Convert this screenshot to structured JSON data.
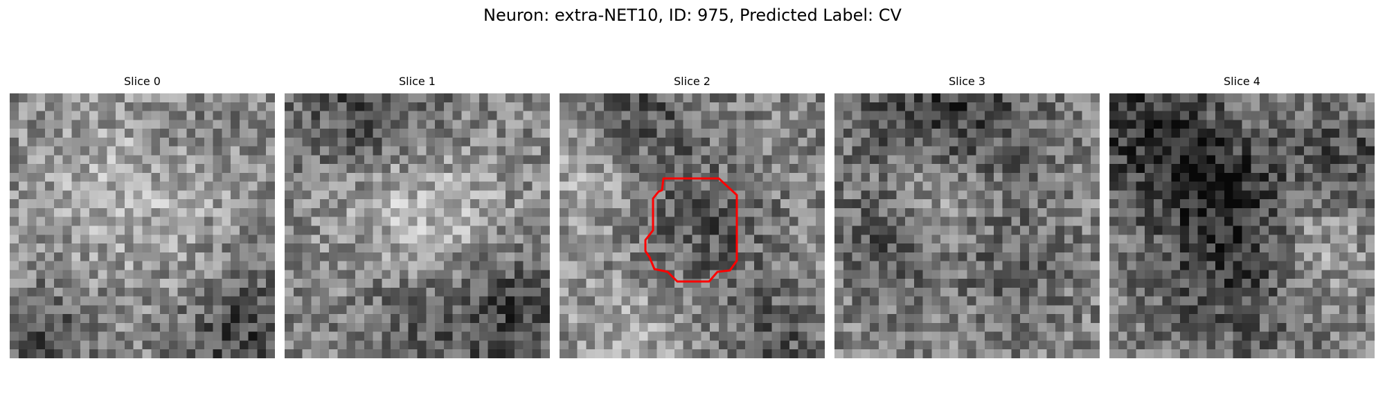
{
  "figure": {
    "title": "Neuron: extra-NET10, ID: 975, Predicted Label: CV"
  },
  "slices": [
    {
      "label": "Slice 0",
      "roi": false
    },
    {
      "label": "Slice 1",
      "roi": false
    },
    {
      "label": "Slice 2",
      "roi": true
    },
    {
      "label": "Slice 3",
      "roi": false
    },
    {
      "label": "Slice 4",
      "roi": false
    }
  ],
  "roi_outline_color": "#ff0000",
  "colormap": "gray",
  "grid_size": 30
}
